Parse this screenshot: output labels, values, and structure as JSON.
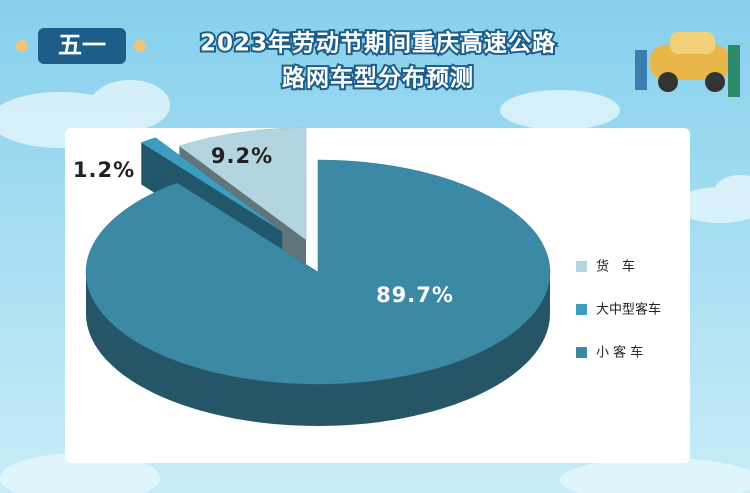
{
  "chart_data": {
    "type": "pie3d",
    "badge": "五一",
    "title_lines": [
      "2023年劳动节期间重庆高速公路",
      "路网车型分布预测"
    ],
    "categories": [
      "货　车",
      "大中型客车",
      "小 客 车"
    ],
    "values": [
      9.2,
      1.2,
      89.7
    ],
    "value_labels": [
      "9.2%",
      "1.2%",
      "89.7%"
    ],
    "colors": [
      "#b3d5df",
      "#3d9dc0",
      "#3b89a5"
    ],
    "exploded": [
      true,
      true,
      false
    ],
    "legend": "right"
  }
}
